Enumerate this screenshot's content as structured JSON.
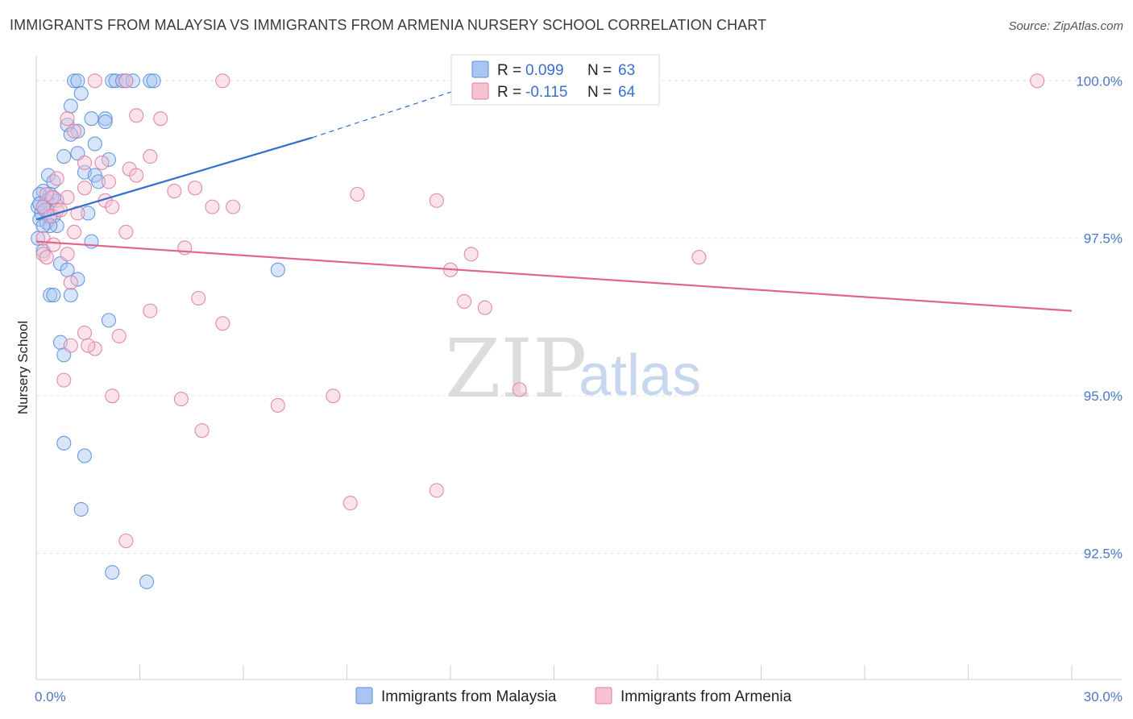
{
  "chart_data": {
    "type": "scatter",
    "title": "IMMIGRANTS FROM MALAYSIA VS IMMIGRANTS FROM ARMENIA NURSERY SCHOOL CORRELATION CHART",
    "source": "Source: ZipAtlas.com",
    "ylabel": "Nursery School",
    "xlim": [
      0,
      30
    ],
    "ylim": [
      90.5,
      100.4
    ],
    "x_tick_labels": [
      "0.0%",
      "30.0%"
    ],
    "y_ticks": [
      {
        "value": 100.0,
        "label": "100.0%"
      },
      {
        "value": 97.5,
        "label": "97.5%"
      },
      {
        "value": 95.0,
        "label": "95.0%"
      },
      {
        "value": 92.5,
        "label": "92.5%"
      }
    ],
    "watermark": {
      "zip": "ZIP",
      "atlas": "atlas"
    },
    "legend": [
      {
        "r_label": "R = ",
        "r_value": "0.099",
        "n_label": "N = ",
        "n_value": "63"
      },
      {
        "r_label": "R = ",
        "r_value": "-0.115",
        "n_label": "N = ",
        "n_value": "64"
      }
    ],
    "series": [
      {
        "name": "Immigrants from Malaysia",
        "color": "#5b8fe0",
        "fill": "#a9c6f2",
        "trend": {
          "x0": 0.0,
          "y0": 97.8,
          "x1": 8.0,
          "y1": 99.1,
          "dash_x1": 13.0,
          "dash_y1": 100.0
        },
        "points": [
          [
            1.1,
            100.0
          ],
          [
            1.2,
            100.0
          ],
          [
            2.2,
            100.0
          ],
          [
            2.3,
            100.0
          ],
          [
            2.5,
            100.0
          ],
          [
            2.6,
            100.0
          ],
          [
            2.8,
            100.0
          ],
          [
            3.3,
            100.0
          ],
          [
            3.4,
            100.0
          ],
          [
            1.3,
            99.8
          ],
          [
            1.0,
            99.6
          ],
          [
            1.6,
            99.4
          ],
          [
            2.0,
            99.4
          ],
          [
            2.0,
            99.35
          ],
          [
            0.9,
            99.3
          ],
          [
            1.2,
            99.2
          ],
          [
            1.0,
            99.15
          ],
          [
            1.7,
            99.0
          ],
          [
            1.2,
            98.85
          ],
          [
            0.8,
            98.8
          ],
          [
            2.1,
            98.75
          ],
          [
            1.4,
            98.55
          ],
          [
            1.7,
            98.5
          ],
          [
            0.35,
            98.5
          ],
          [
            1.8,
            98.4
          ],
          [
            0.5,
            98.4
          ],
          [
            0.2,
            98.25
          ],
          [
            0.4,
            98.2
          ],
          [
            0.1,
            98.2
          ],
          [
            0.6,
            98.1
          ],
          [
            0.3,
            98.1
          ],
          [
            0.05,
            98.0
          ],
          [
            0.2,
            98.0
          ],
          [
            0.3,
            97.95
          ],
          [
            0.15,
            97.9
          ],
          [
            1.5,
            97.9
          ],
          [
            0.5,
            97.85
          ],
          [
            0.1,
            97.8
          ],
          [
            0.3,
            97.75
          ],
          [
            0.6,
            97.7
          ],
          [
            0.4,
            97.7
          ],
          [
            0.2,
            97.7
          ],
          [
            0.05,
            97.5
          ],
          [
            1.6,
            97.45
          ],
          [
            0.2,
            97.3
          ],
          [
            0.7,
            97.1
          ],
          [
            0.9,
            97.0
          ],
          [
            7.0,
            97.0
          ],
          [
            1.2,
            96.85
          ],
          [
            0.4,
            96.6
          ],
          [
            0.5,
            96.6
          ],
          [
            1.0,
            96.6
          ],
          [
            2.1,
            96.2
          ],
          [
            0.7,
            95.85
          ],
          [
            0.8,
            95.65
          ],
          [
            0.8,
            94.25
          ],
          [
            1.4,
            94.05
          ],
          [
            1.3,
            93.2
          ],
          [
            2.2,
            92.2
          ],
          [
            3.2,
            92.05
          ],
          [
            0.1,
            98.05
          ],
          [
            0.25,
            97.95
          ],
          [
            0.45,
            98.15
          ]
        ]
      },
      {
        "name": "Immigrants from Armenia",
        "color": "#e07fa0",
        "fill": "#f6c1d2",
        "trend": {
          "x0": 0.0,
          "y0": 97.45,
          "x1": 30.0,
          "y1": 96.35
        },
        "points": [
          [
            1.7,
            100.0
          ],
          [
            2.6,
            100.0
          ],
          [
            5.4,
            100.0
          ],
          [
            29.0,
            100.0
          ],
          [
            0.9,
            99.4
          ],
          [
            2.9,
            99.45
          ],
          [
            3.6,
            99.4
          ],
          [
            1.1,
            99.2
          ],
          [
            3.3,
            98.8
          ],
          [
            1.4,
            98.7
          ],
          [
            1.9,
            98.7
          ],
          [
            2.7,
            98.6
          ],
          [
            2.9,
            98.5
          ],
          [
            0.6,
            98.45
          ],
          [
            2.1,
            98.4
          ],
          [
            1.4,
            98.3
          ],
          [
            4.0,
            98.25
          ],
          [
            4.6,
            98.3
          ],
          [
            9.3,
            98.2
          ],
          [
            11.6,
            98.1
          ],
          [
            0.5,
            98.15
          ],
          [
            0.9,
            98.15
          ],
          [
            2.0,
            98.1
          ],
          [
            5.1,
            98.0
          ],
          [
            5.7,
            98.0
          ],
          [
            2.2,
            98.0
          ],
          [
            0.2,
            98.0
          ],
          [
            0.6,
            97.95
          ],
          [
            1.2,
            97.9
          ],
          [
            0.4,
            97.85
          ],
          [
            1.1,
            97.6
          ],
          [
            2.6,
            97.6
          ],
          [
            0.2,
            97.5
          ],
          [
            0.5,
            97.4
          ],
          [
            4.3,
            97.35
          ],
          [
            12.6,
            97.25
          ],
          [
            19.2,
            97.2
          ],
          [
            0.2,
            97.25
          ],
          [
            0.9,
            97.25
          ],
          [
            0.3,
            97.2
          ],
          [
            12.0,
            97.0
          ],
          [
            1.0,
            96.8
          ],
          [
            4.7,
            96.55
          ],
          [
            12.4,
            96.5
          ],
          [
            13.0,
            96.4
          ],
          [
            3.3,
            96.35
          ],
          [
            5.4,
            96.15
          ],
          [
            1.4,
            96.0
          ],
          [
            2.4,
            95.95
          ],
          [
            1.0,
            95.8
          ],
          [
            1.7,
            95.75
          ],
          [
            1.5,
            95.8
          ],
          [
            0.8,
            95.25
          ],
          [
            14.0,
            95.1
          ],
          [
            2.2,
            95.0
          ],
          [
            4.2,
            94.95
          ],
          [
            8.6,
            95.0
          ],
          [
            7.0,
            94.85
          ],
          [
            4.8,
            94.45
          ],
          [
            11.6,
            93.5
          ],
          [
            9.1,
            93.3
          ],
          [
            2.6,
            92.7
          ],
          [
            0.3,
            98.2
          ],
          [
            0.7,
            97.95
          ]
        ]
      }
    ]
  }
}
